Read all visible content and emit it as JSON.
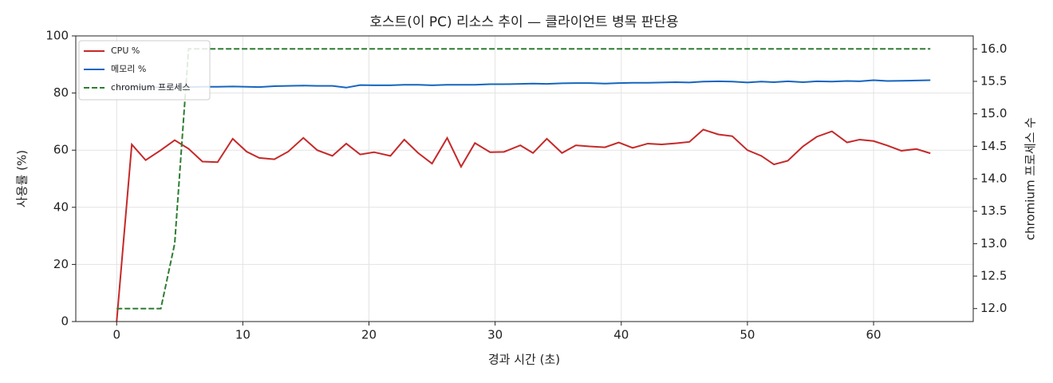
{
  "chart_data": {
    "type": "line",
    "title": "호스트(이 PC) 리소스 추이 — 클라이언트 병목 판단용",
    "x_label": "경과 시간 (초)",
    "y_label": "사용률 (%)",
    "y2_label": "chromium 프로세스 수",
    "x": [
      0,
      1.2,
      2.3,
      3.5,
      4.6,
      5.7,
      6.8,
      8.0,
      9.2,
      10.3,
      11.3,
      12.5,
      13.6,
      14.8,
      15.9,
      17.1,
      18.2,
      19.3,
      20.4,
      21.7,
      22.8,
      23.9,
      25.0,
      26.2,
      27.3,
      28.4,
      29.6,
      30.7,
      32.0,
      33.0,
      34.1,
      35.3,
      36.4,
      37.5,
      38.7,
      39.8,
      40.9,
      42.1,
      43.2,
      44.3,
      45.4,
      46.5,
      47.7,
      48.8,
      50.0,
      51.1,
      52.1,
      53.2,
      54.4,
      55.5,
      56.7,
      57.9,
      58.9,
      60.0,
      61.1,
      62.2,
      63.4,
      64.5
    ],
    "series": [
      {
        "name": "CPU %",
        "color": "#c62828",
        "linestyle": "solid",
        "axis": "y",
        "values": [
          0,
          62,
          56.5,
          60,
          63.5,
          60.5,
          56,
          55.8,
          64,
          59.5,
          57.3,
          56.8,
          59.5,
          64.3,
          60,
          58,
          62.3,
          58.5,
          59.3,
          58,
          63.7,
          59,
          55.3,
          64.3,
          54.2,
          62.5,
          59.3,
          59.4,
          61.7,
          59,
          64,
          59,
          61.7,
          61.3,
          61,
          62.7,
          60.8,
          62.3,
          62,
          62.4,
          62.9,
          67.2,
          65.5,
          64.9,
          60,
          58,
          55,
          56.3,
          61.3,
          64.7,
          66.6,
          62.7,
          63.7,
          63.2,
          61.6,
          59.8,
          60.4,
          58.9
        ]
      },
      {
        "name": "메모리 %",
        "color": "#1565c0",
        "linestyle": "solid",
        "axis": "y",
        "values": [
          81.8,
          82.0,
          82.1,
          82.0,
          82.2,
          82.1,
          82.2,
          82.2,
          82.3,
          82.2,
          82.1,
          82.4,
          82.5,
          82.6,
          82.5,
          82.5,
          81.9,
          82.8,
          82.7,
          82.7,
          82.9,
          82.9,
          82.7,
          82.9,
          82.9,
          82.9,
          83.1,
          83.1,
          83.2,
          83.3,
          83.2,
          83.4,
          83.5,
          83.5,
          83.3,
          83.5,
          83.6,
          83.6,
          83.7,
          83.8,
          83.7,
          84.0,
          84.1,
          84.0,
          83.7,
          84.0,
          83.8,
          84.1,
          83.8,
          84.1,
          84.0,
          84.2,
          84.1,
          84.5,
          84.2,
          84.3,
          84.4,
          84.5
        ]
      },
      {
        "name": "chromium 프로세스",
        "color": "#2e7d32",
        "linestyle": "dashed",
        "axis": "y2",
        "values": [
          12,
          12,
          12,
          12,
          13,
          16,
          16,
          16,
          16,
          16,
          16,
          16,
          16,
          16,
          16,
          16,
          16,
          16,
          16,
          16,
          16,
          16,
          16,
          16,
          16,
          16,
          16,
          16,
          16,
          16,
          16,
          16,
          16,
          16,
          16,
          16,
          16,
          16,
          16,
          16,
          16,
          16,
          16,
          16,
          16,
          16,
          16,
          16,
          16,
          16,
          16,
          16,
          16,
          16,
          16,
          16,
          16,
          16
        ]
      }
    ],
    "xlim": [
      -3.24,
      67.9
    ],
    "xticks": [
      0,
      10,
      20,
      30,
      40,
      50,
      60
    ],
    "ylim": [
      0,
      100
    ],
    "yticks": [
      0,
      20,
      40,
      60,
      80,
      100
    ],
    "y2lim": [
      11.8,
      16.2
    ],
    "y2ticks": [
      {
        "value": 12,
        "label": "12.0"
      },
      12.5,
      {
        "value": 13,
        "label": "13.0"
      },
      13.5,
      {
        "value": 14,
        "label": "14.0"
      },
      14.5,
      {
        "value": 15,
        "label": "15.0"
      },
      15.5,
      {
        "value": 16,
        "label": "16.0"
      }
    ],
    "grid": true,
    "legend": "upper left"
  }
}
